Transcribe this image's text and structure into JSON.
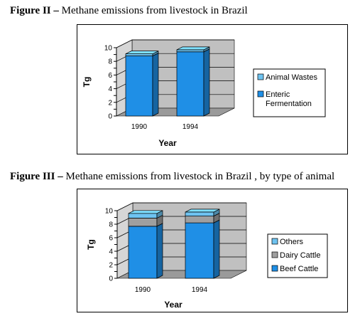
{
  "figures": [
    {
      "number": "Figure II",
      "title": "Methane emissions from livestock in Brazil"
    },
    {
      "number": "Figure III",
      "title": "Methane emissions from livestock in Brazil , by type of animal"
    }
  ],
  "chart_data": [
    {
      "type": "bar",
      "stacked": true,
      "three_d": true,
      "categories": [
        "1990",
        "1994"
      ],
      "series": [
        {
          "name": "Enteric Fermentation",
          "values": [
            8.8,
            9.4
          ],
          "color": "#1f8fe6"
        },
        {
          "name": "Animal Wastes",
          "values": [
            0.3,
            0.3
          ],
          "color": "#6ec3f0"
        }
      ],
      "xlabel": "Year",
      "ylabel": "Tg",
      "ylim": [
        0,
        10
      ],
      "yticks": [
        0,
        2,
        4,
        6,
        8,
        10
      ],
      "yticks_minor": [
        1,
        3,
        5,
        7,
        9
      ],
      "legend": [
        "Animal Wastes",
        "Enteric Fermentation"
      ],
      "legend_lines": [
        [
          "Animal Wastes"
        ],
        [
          "Enteric",
          "Fermentation"
        ]
      ],
      "legend_colors": [
        "#6ec3f0",
        "#1f8fe6"
      ],
      "legend_position": "right",
      "grid": true,
      "wall_color": "#c0c0c0",
      "floor_color": "#9a9a9a"
    },
    {
      "type": "bar",
      "stacked": true,
      "three_d": true,
      "categories": [
        "1990",
        "1994"
      ],
      "series": [
        {
          "name": "Beef Cattle",
          "values": [
            7.7,
            8.2
          ],
          "color": "#1f8fe6"
        },
        {
          "name": "Dairy Cattle",
          "values": [
            1.2,
            1.0
          ],
          "color": "#9f9f9f"
        },
        {
          "name": "Others",
          "values": [
            0.7,
            0.6
          ],
          "color": "#6ec3f0"
        }
      ],
      "xlabel": "Year",
      "ylabel": "Tg",
      "ylim": [
        0,
        10
      ],
      "yticks": [
        0,
        2,
        4,
        6,
        8,
        10
      ],
      "yticks_minor": [
        1,
        3,
        5,
        7,
        9
      ],
      "legend": [
        "Others",
        "Dairy Cattle",
        "Beef Cattle"
      ],
      "legend_lines": [
        [
          "Others"
        ],
        [
          "Dairy Cattle"
        ],
        [
          "Beef Cattle"
        ]
      ],
      "legend_colors": [
        "#6ec3f0",
        "#9f9f9f",
        "#1f8fe6"
      ],
      "legend_position": "right",
      "grid": true,
      "wall_color": "#c0c0c0",
      "floor_color": "#9a9a9a"
    }
  ]
}
